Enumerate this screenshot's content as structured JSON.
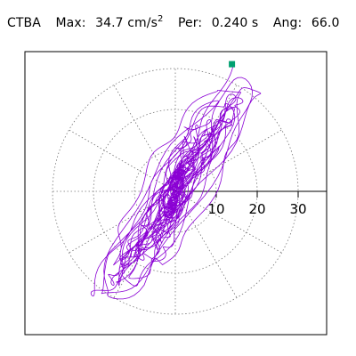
{
  "header": {
    "station": "CTBA",
    "max_label": "Max:",
    "max_value": "34.7 cm/s",
    "max_exponent": "2",
    "per_label": "Per:",
    "per_value": "0.240 s",
    "ang_label": "Ang:",
    "ang_value": "66.0"
  },
  "chart_data": {
    "type": "polar-trace",
    "radial_ticks": [
      "10",
      "20",
      "30"
    ],
    "radial_tick_values": [
      10,
      20,
      30
    ],
    "radial_max": 30,
    "angle_deg": 66.0,
    "peak_value": 34.7,
    "grid": "dotted rings at 10, 20, 30; dotted spokes every 30 degrees",
    "colors": {
      "trace": "#8a00d4",
      "marker": "#00a070",
      "axis": "#000000",
      "grid": "#777777"
    }
  }
}
